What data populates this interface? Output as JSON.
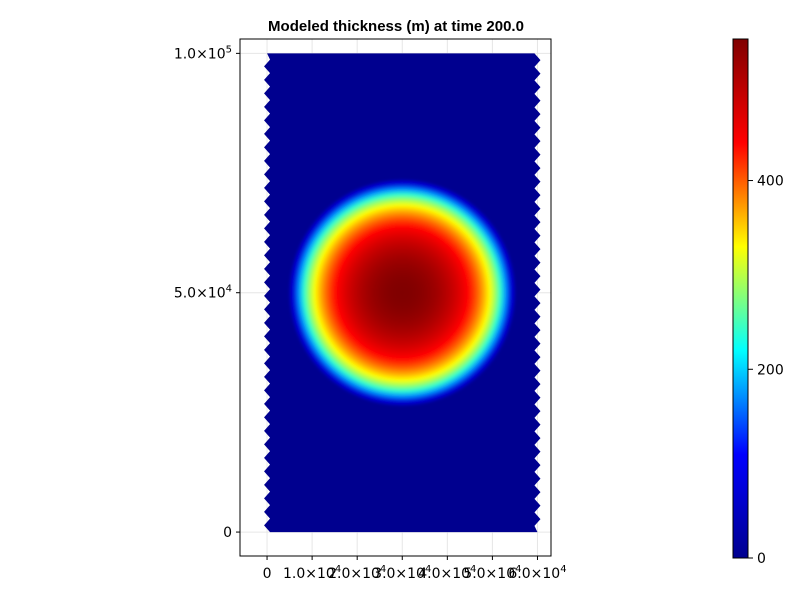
{
  "chart_data": [
    {
      "type": "heatmap",
      "title": "Modeled thickness (m) at time 200.0",
      "xlabel": "",
      "ylabel": "",
      "xlim": [
        -6000,
        63000
      ],
      "ylim": [
        -5000,
        103000
      ],
      "x_ticks": [
        {
          "value": 0,
          "mant": "0",
          "exp": ""
        },
        {
          "value": 10000,
          "mant": "1.0×10",
          "exp": "4"
        },
        {
          "value": 20000,
          "mant": "2.0×10",
          "exp": "4"
        },
        {
          "value": 30000,
          "mant": "3.0×10",
          "exp": "4"
        },
        {
          "value": 40000,
          "mant": "4.0×10",
          "exp": "4"
        },
        {
          "value": 50000,
          "mant": "5.0×10",
          "exp": "4"
        },
        {
          "value": 60000,
          "mant": "6.0×10",
          "exp": "4"
        }
      ],
      "y_ticks": [
        {
          "value": 0,
          "mant": "0",
          "exp": ""
        },
        {
          "value": 50000,
          "mant": "5.0×10",
          "exp": "4"
        },
        {
          "value": 100000,
          "mant": "1.0×10",
          "exp": "5"
        }
      ],
      "domain": {
        "x": [
          0,
          60000
        ],
        "y": [
          0,
          100000
        ]
      },
      "field": {
        "shape": "radial dome",
        "center": [
          30000,
          50000
        ],
        "radius": 24000,
        "peak_value": 550,
        "background_value": 0
      },
      "grid": true,
      "colorscale": "jet"
    },
    {
      "type": "colorbar",
      "range": [
        0,
        550
      ],
      "ticks": [
        "0",
        "200",
        "400"
      ],
      "tick_values": [
        0,
        200,
        400
      ],
      "colors": [
        "#00008f",
        "#0000ff",
        "#00ffff",
        "#ffff00",
        "#ff0000",
        "#800000"
      ]
    }
  ]
}
